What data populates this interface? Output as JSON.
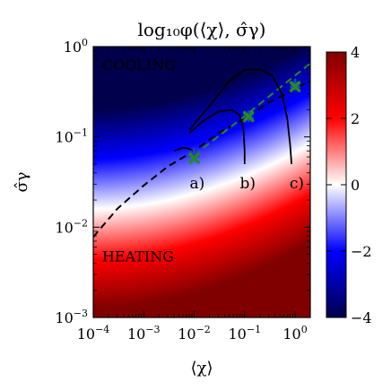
{
  "chart_data": {
    "type": "heatmap",
    "title": "log₁₀φ(⟨χ⟩, σ̂γ)",
    "xlabel": "⟨χ⟩",
    "ylabel": "σ̂γ",
    "xscale": "log",
    "yscale": "log",
    "xlim": [
      0.0001,
      2
    ],
    "ylim": [
      0.001,
      1
    ],
    "x_ticks": [
      {
        "value": 0.0001,
        "base": "10",
        "exp": "−4"
      },
      {
        "value": 0.001,
        "base": "10",
        "exp": "−3"
      },
      {
        "value": 0.01,
        "base": "10",
        "exp": "−2"
      },
      {
        "value": 0.1,
        "base": "10",
        "exp": "−1"
      },
      {
        "value": 1,
        "base": "10",
        "exp": "0"
      }
    ],
    "y_ticks": [
      {
        "value": 0.001,
        "base": "10",
        "exp": "−3"
      },
      {
        "value": 0.01,
        "base": "10",
        "exp": "−2"
      },
      {
        "value": 0.1,
        "base": "10",
        "exp": "−1"
      },
      {
        "value": 1,
        "base": "10",
        "exp": "0"
      }
    ],
    "colorbar": {
      "min": -4,
      "max": 4,
      "ticks": [
        4,
        2,
        0,
        -2,
        -4
      ],
      "tick_labels": [
        "4",
        "2",
        "0",
        "−2",
        "−4"
      ],
      "colormap": "seismic",
      "colors": {
        "low": "#00004c",
        "blue": "#0000ff",
        "mid": "#ffffff",
        "red": "#ff0000",
        "high": "#800000"
      }
    },
    "regions": [
      {
        "label": "COOLING",
        "x": 0.00015,
        "y": 0.55
      },
      {
        "label": "HEATING",
        "x": 0.00015,
        "y": 0.0042
      }
    ],
    "boundary_line": {
      "style": "dashed",
      "color": "#000000",
      "points": [
        [
          0.0001,
          0.0078
        ],
        [
          0.0003,
          0.016
        ],
        [
          0.001,
          0.029
        ],
        [
          0.003,
          0.047
        ],
        [
          0.01,
          0.07
        ],
        [
          0.03,
          0.11
        ],
        [
          0.1,
          0.16
        ],
        [
          0.3,
          0.24
        ],
        [
          1,
          0.34
        ],
        [
          2,
          0.42
        ]
      ]
    },
    "fit_line": {
      "style": "dashed",
      "color": "#228b22",
      "points": [
        [
          0.01,
          0.063
        ],
        [
          0.1,
          0.17
        ],
        [
          1,
          0.48
        ],
        [
          2,
          0.65
        ]
      ]
    },
    "curves": [
      {
        "label": "a)",
        "label_x": 0.0115,
        "label_y": 0.027,
        "points": [
          [
            0.004,
            0.07
          ],
          [
            0.006,
            0.076
          ],
          [
            0.008,
            0.074
          ],
          [
            0.01,
            0.066
          ],
          [
            0.011,
            0.06
          ]
        ]
      },
      {
        "label": "b)",
        "label_x": 0.115,
        "label_y": 0.027,
        "points": [
          [
            0.008,
            0.11
          ],
          [
            0.015,
            0.15
          ],
          [
            0.03,
            0.19
          ],
          [
            0.055,
            0.2
          ],
          [
            0.08,
            0.175
          ],
          [
            0.095,
            0.12
          ],
          [
            0.1,
            0.07
          ],
          [
            0.1,
            0.05
          ]
        ]
      },
      {
        "label": "c)",
        "label_x": 1.08,
        "label_y": 0.027,
        "points": [
          [
            0.008,
            0.12
          ],
          [
            0.02,
            0.22
          ],
          [
            0.05,
            0.42
          ],
          [
            0.1,
            0.55
          ],
          [
            0.2,
            0.56
          ],
          [
            0.35,
            0.48
          ],
          [
            0.55,
            0.3
          ],
          [
            0.7,
            0.16
          ],
          [
            0.8,
            0.08
          ],
          [
            0.85,
            0.05
          ]
        ]
      }
    ],
    "markers": [
      {
        "x": 0.01,
        "y": 0.065,
        "color": "#1f3fc8",
        "shape": "star"
      },
      {
        "x": 0.01,
        "y": 0.058,
        "color": "#228b22",
        "shape": "x"
      },
      {
        "x": 0.12,
        "y": 0.17,
        "color": "#1f3fc8",
        "shape": "star"
      },
      {
        "x": 0.12,
        "y": 0.168,
        "color": "#228b22",
        "shape": "x"
      },
      {
        "x": 1.0,
        "y": 0.38,
        "color": "#1f3fc8",
        "shape": "star"
      },
      {
        "x": 1.0,
        "y": 0.36,
        "color": "#228b22",
        "shape": "x"
      }
    ]
  }
}
